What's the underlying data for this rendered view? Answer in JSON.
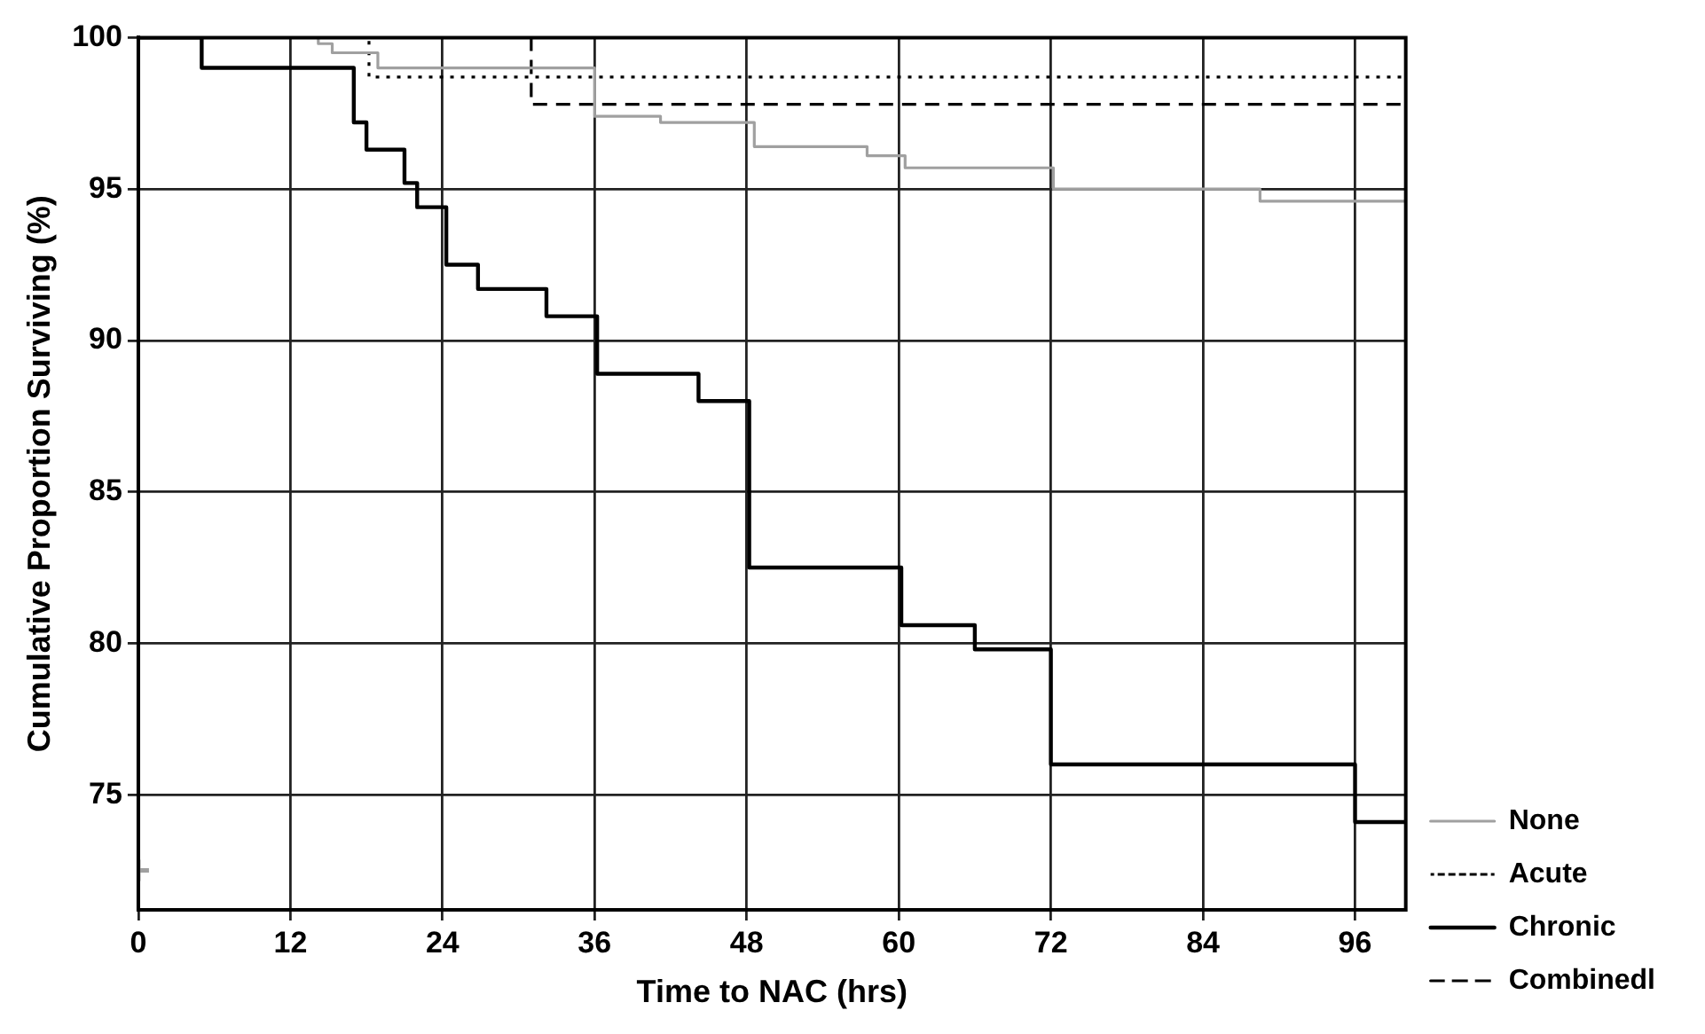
{
  "chart_data": {
    "type": "step",
    "xlabel": "Time to NAC (hrs)",
    "ylabel": "Cumulative Proportion Surviving (%)",
    "xlim": [
      0,
      100
    ],
    "xticks": [
      0,
      12,
      24,
      36,
      48,
      60,
      72,
      84,
      96
    ],
    "ylim": [
      71.2,
      100
    ],
    "yticks": [
      75,
      80,
      85,
      90,
      95,
      100
    ],
    "grid": true,
    "legend": "bottom right",
    "marker": "none",
    "series": [
      {
        "name": "None",
        "color": "#a0a0a0",
        "line_style": "solid",
        "x": [
          0,
          14.2,
          15.3,
          18.9,
          36,
          41.2,
          48.6,
          57.5,
          60.5,
          72.2,
          88.5,
          100
        ],
        "values": [
          100,
          99.8,
          99.5,
          99.0,
          97.4,
          97.2,
          96.4,
          96.1,
          95.7,
          95.0,
          94.6,
          94.6
        ]
      },
      {
        "name": "Acute",
        "color": "#000000",
        "line_style": "dotted",
        "x": [
          0,
          18.2,
          100
        ],
        "values": [
          100,
          98.7,
          98.7
        ]
      },
      {
        "name": "Chronic",
        "color": "#000000",
        "line_style": "solid",
        "x": [
          0,
          5,
          17,
          18,
          21,
          22,
          24.3,
          26.8,
          32.2,
          36.2,
          44.2,
          48.2,
          60.2,
          66,
          72,
          96,
          100
        ],
        "values": [
          100,
          99.0,
          97.2,
          96.3,
          95.2,
          94.4,
          92.5,
          91.7,
          90.8,
          88.9,
          88.0,
          82.5,
          80.6,
          79.8,
          76.0,
          74.1,
          74.1
        ]
      },
      {
        "name": "Combinedl",
        "color": "#000000",
        "line_style": "dashed",
        "x": [
          0,
          31,
          100
        ],
        "values": [
          100,
          97.8,
          97.8
        ]
      },
      {
        "type": "scatter",
        "color": "#a0a0a0",
        "marker": "cross",
        "x": [
          0
        ],
        "values": [
          72.5
        ]
      }
    ]
  }
}
